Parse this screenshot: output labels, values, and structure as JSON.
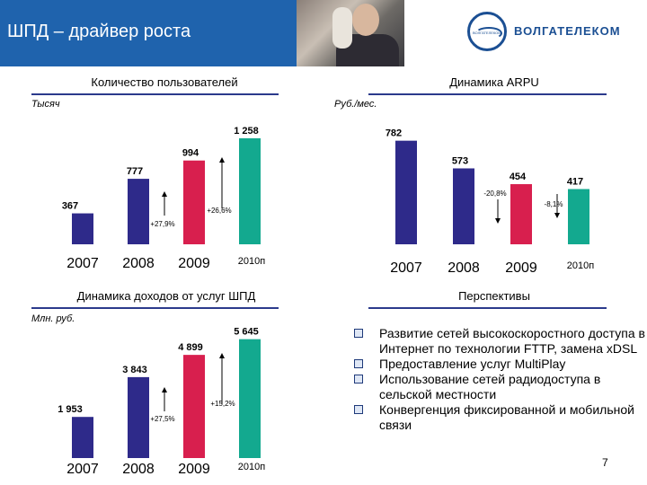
{
  "slide": {
    "title": "ШПД – драйвер роста",
    "page_number": "7"
  },
  "logo": {
    "text": "ВОЛГАТЕЛЕКОМ",
    "circle_text": "ВОЛГАТЕЛЕКОМ"
  },
  "sections": {
    "users": {
      "title": "Количество пользователей",
      "unit": "Тысяч"
    },
    "arpu": {
      "title": "Динамика ARPU",
      "unit": "Руб./мес."
    },
    "revenue": {
      "title": "Динамика доходов от услуг ШПД",
      "unit": "Млн. руб."
    },
    "prospects": {
      "title": "Перспективы",
      "items": [
        "Развитие сетей высокоскоростного доступа в Интернет по технологии FTTP, замена xDSL",
        "Предоставление услуг MultiPlay",
        "Использование сетей радиодоступа в сельской местности",
        "Конвергенция фиксированной и мобильной связи"
      ]
    }
  },
  "colors": {
    "header": "#1f63ad",
    "bar_blue": "#2e2a8a",
    "bar_red": "#d81f4e",
    "bar_green": "#13a98f"
  },
  "chart_data": [
    {
      "type": "bar",
      "categories": [
        "2007",
        "2008",
        "2009",
        "2010п"
      ],
      "series": [
        {
          "values": [
            367,
            777,
            994,
            1258
          ],
          "labels": [
            "367",
            "777",
            "994",
            "1 258"
          ]
        }
      ],
      "ylim": [
        0,
        1300
      ],
      "annotations": [
        "+27,9%",
        "+26,6%"
      ]
    },
    {
      "type": "bar",
      "categories": [
        "2007",
        "2008",
        "2009",
        "2010п"
      ],
      "series": [
        {
          "values": [
            782,
            573,
            454,
            417
          ],
          "labels": [
            "782",
            "573",
            "454",
            "417"
          ]
        }
      ],
      "ylim": [
        0,
        800
      ],
      "annotations": [
        "-20,8%",
        "-8,1%"
      ]
    },
    {
      "type": "bar",
      "categories": [
        "2007",
        "2008",
        "2009",
        "2010п"
      ],
      "series": [
        {
          "values": [
            1953,
            3843,
            4899,
            5645
          ],
          "labels": [
            "1 953",
            "3 843",
            "4 899",
            "5 645"
          ]
        }
      ],
      "ylim": [
        0,
        5800
      ],
      "annotations": [
        "+27,5%",
        "+15,2%"
      ]
    }
  ]
}
